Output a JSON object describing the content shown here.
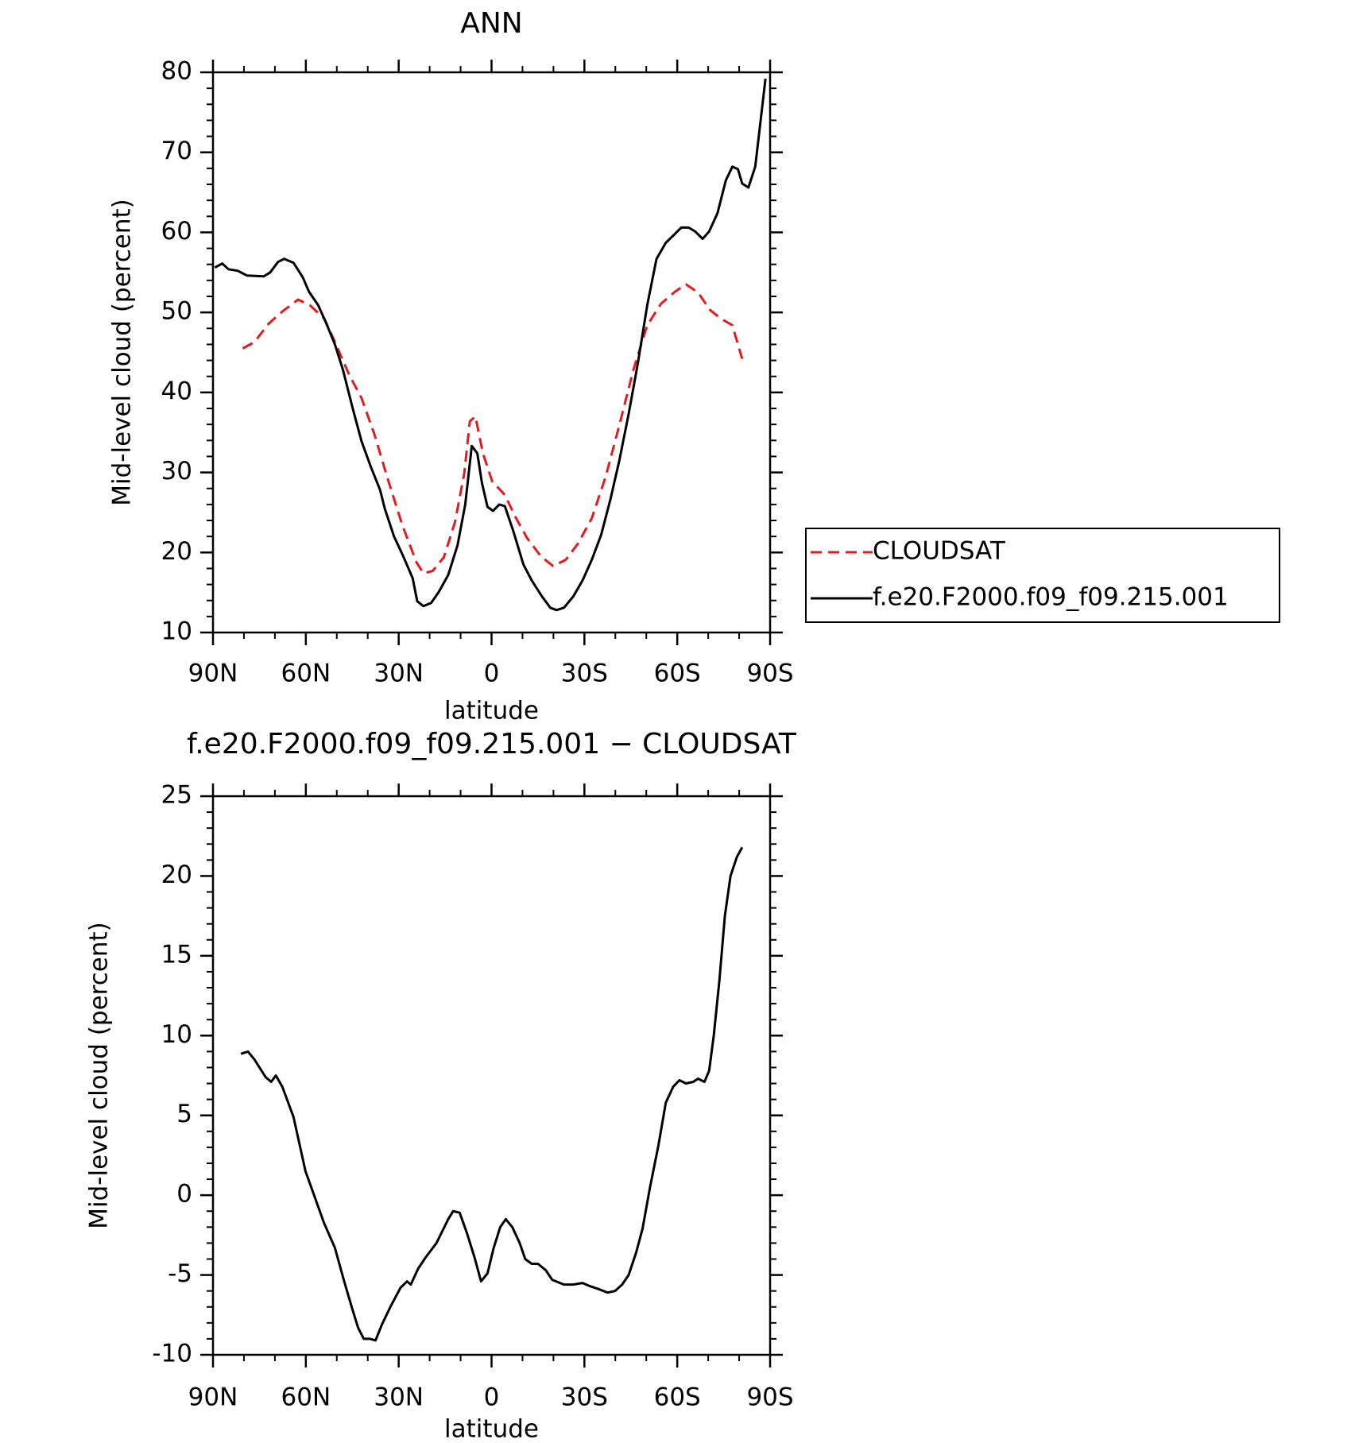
{
  "chart_data": [
    {
      "type": "line",
      "title": "ANN",
      "xlabel": "latitude",
      "ylabel": "Mid-level cloud (percent)",
      "xlim": [
        90,
        -90
      ],
      "xticks": [
        {
          "value": 90,
          "label": "90N"
        },
        {
          "value": 60,
          "label": "60N"
        },
        {
          "value": 30,
          "label": "30N"
        },
        0,
        {
          "value": -30,
          "label": "30S"
        },
        {
          "value": -60,
          "label": "60S"
        },
        {
          "value": -90,
          "label": "90S"
        }
      ],
      "ylim": [
        10,
        80
      ],
      "yticks": [
        10,
        20,
        30,
        40,
        50,
        60,
        70,
        80
      ],
      "legend": "right",
      "series": [
        {
          "name": "CLOUDSAT",
          "color": "#e41a1c",
          "dash": true,
          "x": [
            80.4,
            76.6,
            72,
            67.6,
            62.5,
            58.7,
            54,
            50.6,
            46,
            42,
            37.8,
            33.3,
            28.8,
            24.3,
            22,
            19,
            15.4,
            11.8,
            8.8,
            7,
            5.2,
            2.8,
            -0.2,
            -4.3,
            -7.9,
            -11.5,
            -16,
            -19.9,
            -24,
            -27.9,
            -32.4,
            -36.9,
            -41.3,
            -45.8,
            -50.3,
            -54.8,
            -59.3,
            -62.8,
            -66.7,
            -70.6,
            -74.2,
            -77.8,
            -81
          ],
          "values": [
            45.5,
            46.3,
            48.6,
            50.1,
            51.6,
            50.9,
            49.2,
            46.3,
            42.2,
            39.3,
            34.7,
            28.9,
            23.4,
            18.8,
            17.4,
            17.7,
            19.4,
            23.8,
            29.9,
            36.4,
            37,
            32.4,
            28.9,
            27.2,
            24.3,
            21.8,
            19.5,
            18.3,
            19.1,
            21.1,
            24.3,
            29.5,
            35.9,
            42.8,
            48.4,
            51.1,
            52.6,
            53.5,
            52.5,
            50.3,
            49.2,
            48.4,
            44.2
          ]
        },
        {
          "name": "f.e20.F2000.f09_f09.215.001",
          "color": "#000000",
          "dash": false,
          "x": [
            89.4,
            87,
            85,
            82,
            79,
            73.6,
            71.5,
            69,
            67,
            64,
            61,
            59,
            56,
            53.6,
            50.6,
            48,
            45,
            42,
            39,
            36,
            34.5,
            31.5,
            28.5,
            25.5,
            24,
            22,
            19.5,
            17,
            14,
            11,
            8.5,
            6.4,
            4.6,
            3.1,
            1.3,
            -0.5,
            -2.5,
            -4.3,
            -7,
            -10.3,
            -13,
            -16.3,
            -19,
            -21,
            -23.4,
            -26.4,
            -29.4,
            -32.4,
            -35.4,
            -38.4,
            -41.3,
            -44.3,
            -47.3,
            -50.3,
            -53.3,
            -56.3,
            -58.7,
            -61.3,
            -63.7,
            -65.8,
            -68.2,
            -70.3,
            -73,
            -75.7,
            -77.8,
            -79.6,
            -81,
            -83,
            -85.2,
            -88.5
          ],
          "values": [
            55.6,
            56.1,
            55.4,
            55.2,
            54.6,
            54.5,
            55,
            56.3,
            56.7,
            56.2,
            54.4,
            52.6,
            50.9,
            48.8,
            46,
            42.8,
            38.2,
            33.9,
            30.7,
            27.8,
            25.5,
            22,
            19.5,
            16.8,
            13.9,
            13.3,
            13.7,
            15.1,
            17.2,
            20.9,
            26,
            33.3,
            32.4,
            28.7,
            25.7,
            25.2,
            26,
            25.8,
            22.7,
            18.5,
            16.5,
            14.5,
            13.1,
            12.8,
            13.1,
            14.5,
            16.5,
            19.1,
            22.2,
            26.6,
            31.5,
            37.3,
            43.7,
            50.9,
            56.7,
            58.7,
            59.6,
            60.6,
            60.6,
            60.1,
            59.2,
            60.1,
            62.4,
            66.5,
            68.2,
            67.9,
            66.1,
            65.6,
            68.2,
            79.2
          ]
        }
      ]
    },
    {
      "type": "line",
      "title": "f.e20.F2000.f09_f09.215.001 − CLOUDSAT",
      "xlabel": "latitude",
      "ylabel": "Mid-level cloud (percent)",
      "xlim": [
        90,
        -90
      ],
      "xticks": [
        {
          "value": 90,
          "label": "90N"
        },
        {
          "value": 60,
          "label": "60N"
        },
        {
          "value": 30,
          "label": "30N"
        },
        0,
        {
          "value": -30,
          "label": "30S"
        },
        {
          "value": -60,
          "label": "60S"
        },
        {
          "value": -90,
          "label": "90S"
        }
      ],
      "ylim": [
        -10,
        25
      ],
      "yticks": [
        -10,
        -5,
        0,
        5,
        10,
        15,
        20,
        25
      ],
      "series": [
        {
          "color": "#000000",
          "dash": false,
          "x": [
            81,
            78.7,
            76.6,
            73,
            71.2,
            69.7,
            67.6,
            64,
            60.1,
            56.6,
            54.2,
            50.6,
            47.6,
            45.2,
            43.1,
            41.3,
            39.3,
            37.5,
            35.4,
            32.7,
            29.4,
            27.3,
            26.1,
            23.7,
            21.3,
            17.8,
            14,
            12.4,
            10.3,
            7.9,
            5.5,
            3.4,
            1.3,
            -0.7,
            -2.8,
            -4.6,
            -6.7,
            -9.1,
            -10.9,
            -13,
            -15,
            -17.5,
            -19.6,
            -23.4,
            -26.4,
            -29.4,
            -31.8,
            -34.8,
            -37.5,
            -39.9,
            -42.2,
            -44.3,
            -46.7,
            -48.8,
            -51.2,
            -53.9,
            -56.3,
            -58.7,
            -60.7,
            -62.8,
            -65.2,
            -66.7,
            -68.8,
            -70.3,
            -71.8,
            -73.6,
            -75.4,
            -77.2,
            -79.3,
            -81
          ],
          "values": [
            8.86,
            9,
            8.5,
            7.4,
            7.1,
            7.5,
            6.8,
            4.9,
            1.5,
            -0.4,
            -1.7,
            -3.3,
            -5.4,
            -7,
            -8.3,
            -9,
            -9,
            -9.1,
            -8.1,
            -7,
            -5.8,
            -5.4,
            -5.6,
            -4.6,
            -3.9,
            -3,
            -1.5,
            -1,
            -1.1,
            -2.4,
            -3.9,
            -5.4,
            -4.9,
            -3.3,
            -2,
            -1.5,
            -2,
            -3,
            -4,
            -4.3,
            -4.3,
            -4.7,
            -5.3,
            -5.6,
            -5.6,
            -5.5,
            -5.7,
            -5.9,
            -6.1,
            -6,
            -5.6,
            -5,
            -3.6,
            -2.1,
            0.5,
            3.1,
            5.8,
            6.8,
            7.2,
            7,
            7.1,
            7.3,
            7.1,
            7.8,
            10,
            13.4,
            17.5,
            20,
            21.2,
            21.8
          ]
        }
      ]
    }
  ]
}
